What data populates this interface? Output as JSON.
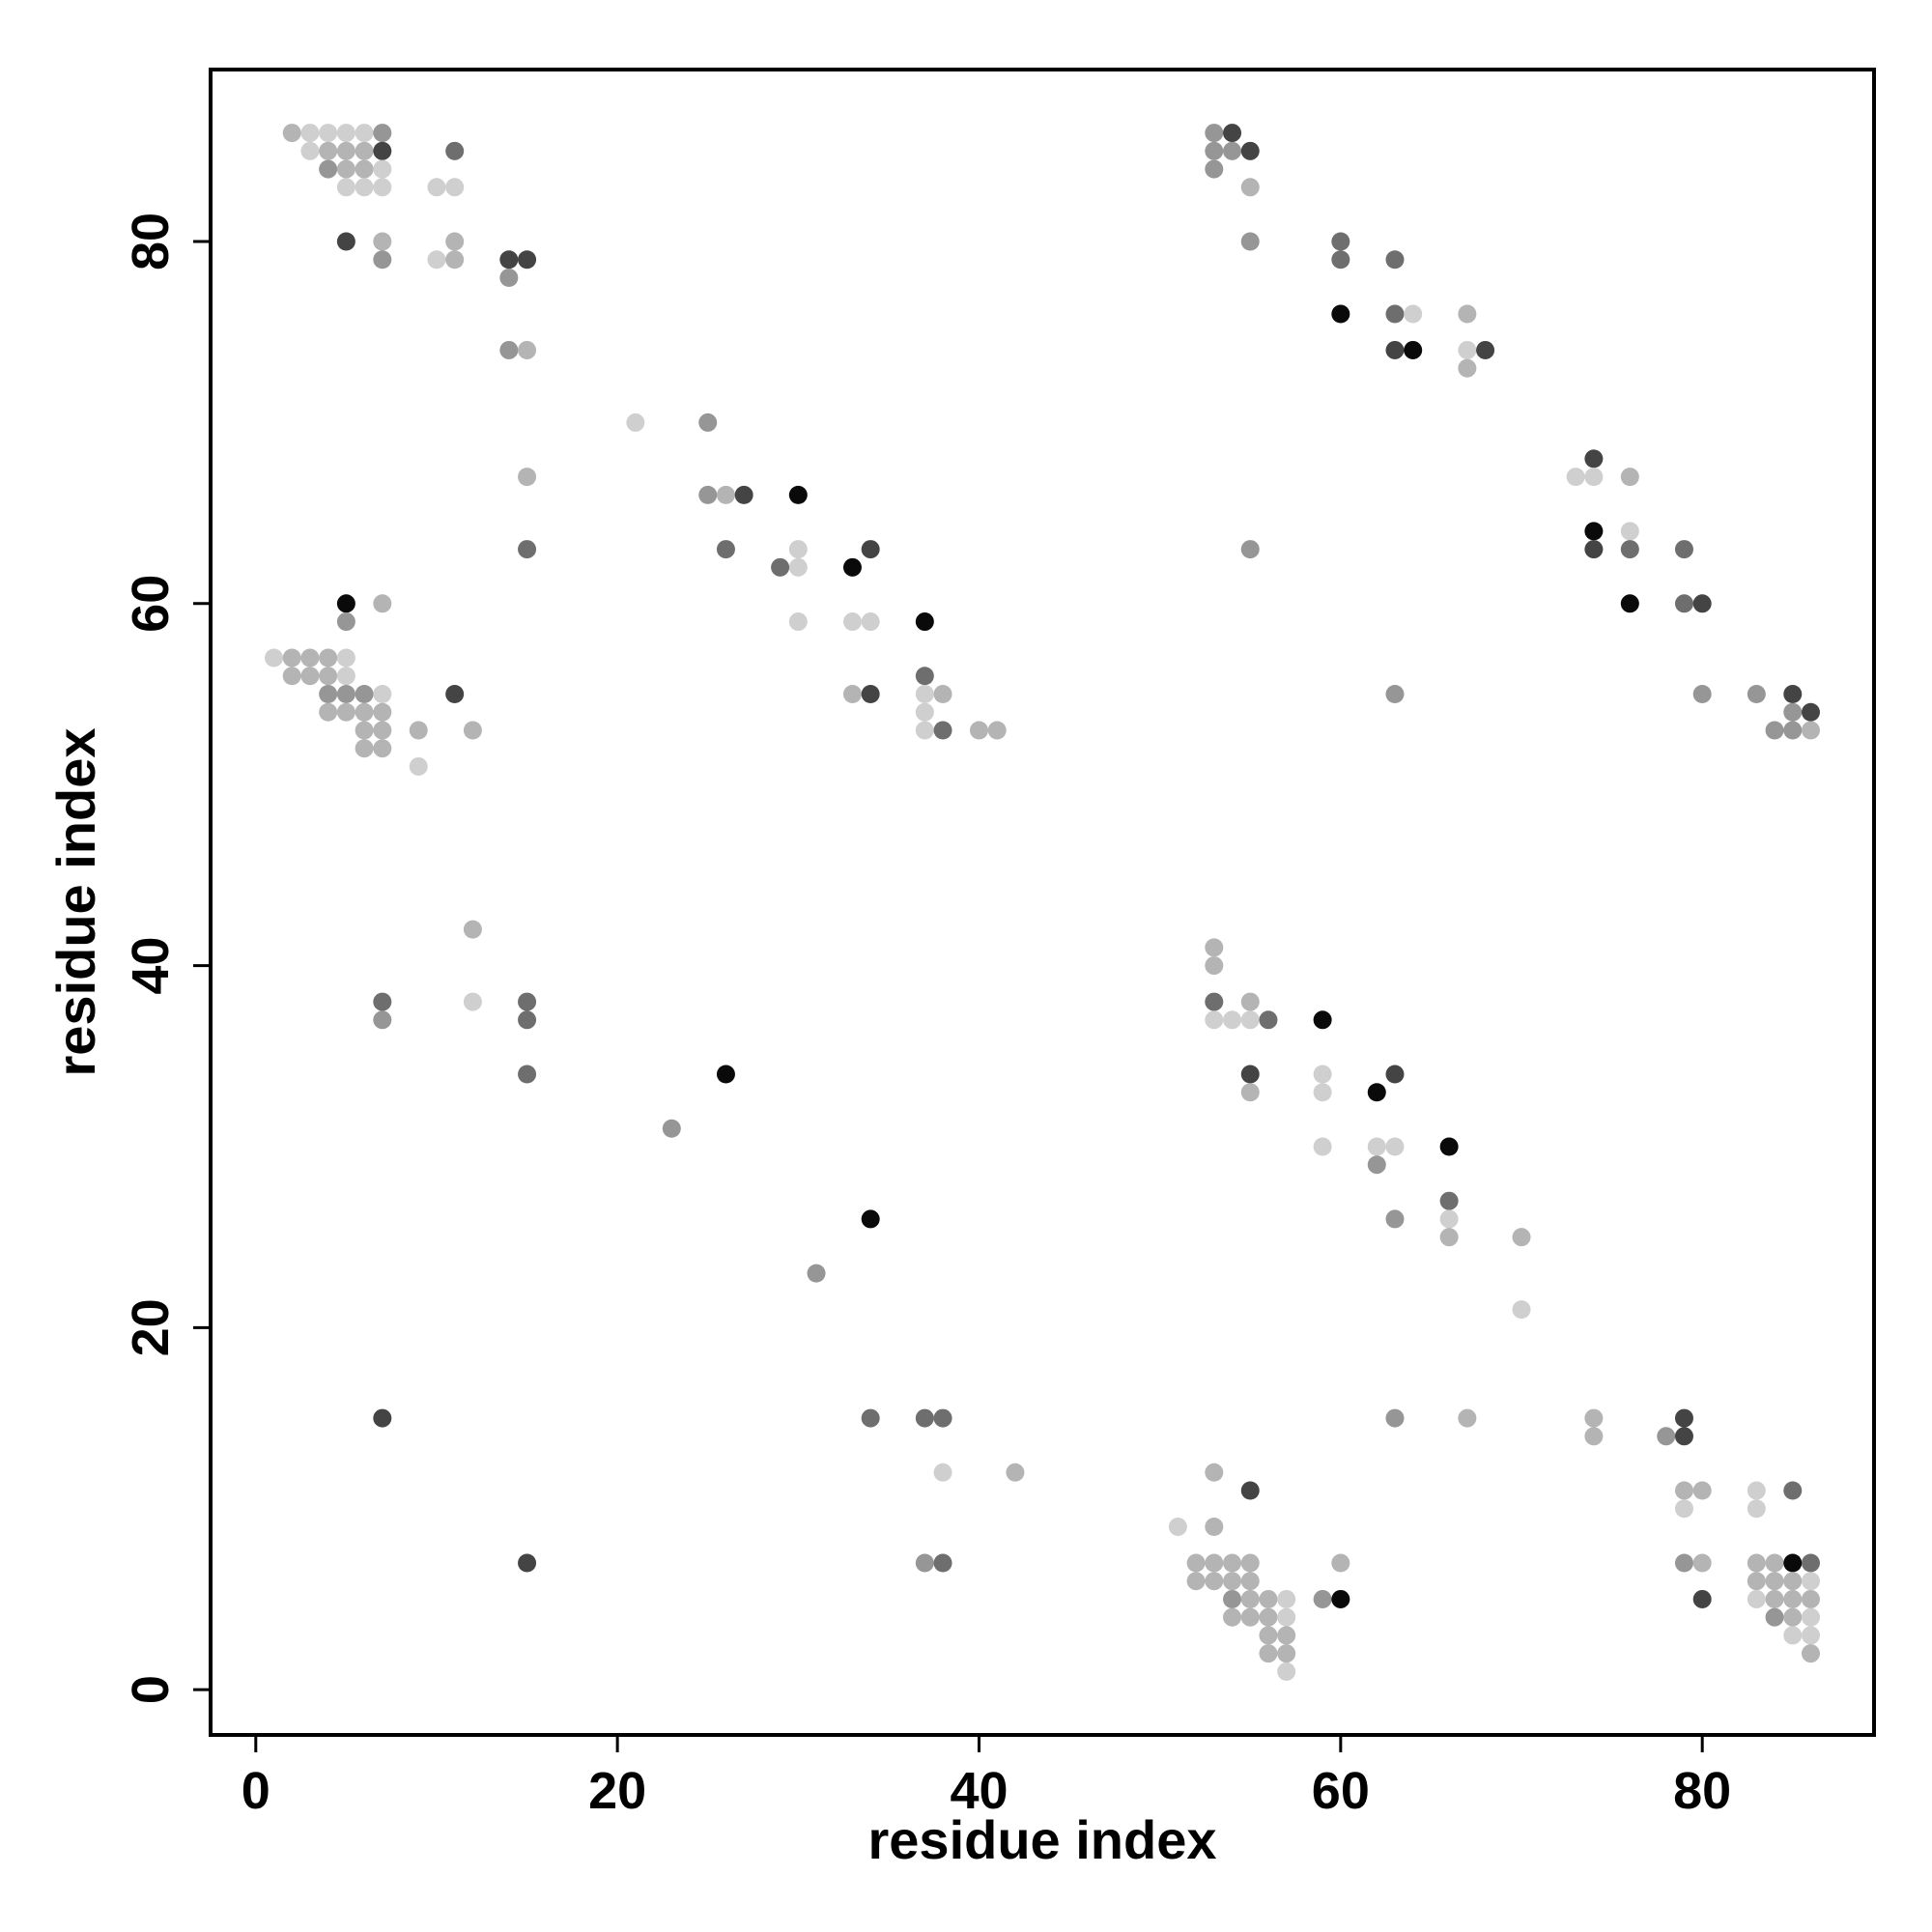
{
  "chart_data": {
    "type": "scatter",
    "title": "",
    "xlabel": "residue index",
    "ylabel": "residue index",
    "xlim": [
      -2.5,
      89.5
    ],
    "ylim": [
      -2.5,
      89.5
    ],
    "xticks": [
      0,
      20,
      40,
      60,
      80
    ],
    "yticks": [
      0,
      20,
      40,
      60,
      80
    ],
    "grid": false,
    "legend": "none",
    "point_shades": {
      "1": "#cfcfcf",
      "2": "#b4b4b4",
      "3": "#969696",
      "4": "#6e6e6e",
      "5": "#444444",
      "6": "#0a0a0a"
    },
    "points": [
      {
        "x": 2,
        "y": 86,
        "s": 2
      },
      {
        "x": 3,
        "y": 86,
        "s": 1
      },
      {
        "x": 4,
        "y": 86,
        "s": 1
      },
      {
        "x": 5,
        "y": 86,
        "s": 1
      },
      {
        "x": 6,
        "y": 86,
        "s": 1
      },
      {
        "x": 7,
        "y": 86,
        "s": 3
      },
      {
        "x": 3,
        "y": 85,
        "s": 1
      },
      {
        "x": 4,
        "y": 85,
        "s": 2
      },
      {
        "x": 5,
        "y": 85,
        "s": 2
      },
      {
        "x": 6,
        "y": 85,
        "s": 2
      },
      {
        "x": 7,
        "y": 85,
        "s": 5
      },
      {
        "x": 4,
        "y": 84,
        "s": 3
      },
      {
        "x": 5,
        "y": 84,
        "s": 2
      },
      {
        "x": 6,
        "y": 84,
        "s": 2
      },
      {
        "x": 7,
        "y": 84,
        "s": 1
      },
      {
        "x": 5,
        "y": 83,
        "s": 1
      },
      {
        "x": 6,
        "y": 83,
        "s": 1
      },
      {
        "x": 7,
        "y": 83,
        "s": 1
      },
      {
        "x": 10,
        "y": 83,
        "s": 1
      },
      {
        "x": 11,
        "y": 83,
        "s": 1
      },
      {
        "x": 11,
        "y": 85,
        "s": 4
      },
      {
        "x": 5,
        "y": 80,
        "s": 5
      },
      {
        "x": 7,
        "y": 80,
        "s": 2
      },
      {
        "x": 7,
        "y": 79,
        "s": 3
      },
      {
        "x": 10,
        "y": 79,
        "s": 1
      },
      {
        "x": 11,
        "y": 79,
        "s": 2
      },
      {
        "x": 11,
        "y": 80,
        "s": 2
      },
      {
        "x": 14,
        "y": 79,
        "s": 5
      },
      {
        "x": 15,
        "y": 79,
        "s": 5
      },
      {
        "x": 14,
        "y": 78,
        "s": 3
      },
      {
        "x": 14,
        "y": 74,
        "s": 3
      },
      {
        "x": 15,
        "y": 74,
        "s": 2
      },
      {
        "x": 15,
        "y": 67,
        "s": 2
      },
      {
        "x": 15,
        "y": 63,
        "s": 4
      },
      {
        "x": 21,
        "y": 70,
        "s": 1
      },
      {
        "x": 25,
        "y": 70,
        "s": 3
      },
      {
        "x": 25,
        "y": 66,
        "s": 3
      },
      {
        "x": 26,
        "y": 66,
        "s": 2
      },
      {
        "x": 27,
        "y": 66,
        "s": 5
      },
      {
        "x": 26,
        "y": 63,
        "s": 4
      },
      {
        "x": 30,
        "y": 66,
        "s": 6
      },
      {
        "x": 30,
        "y": 63,
        "s": 1
      },
      {
        "x": 30,
        "y": 62,
        "s": 1
      },
      {
        "x": 29,
        "y": 62,
        "s": 4
      },
      {
        "x": 30,
        "y": 59,
        "s": 1
      },
      {
        "x": 33,
        "y": 62,
        "s": 6
      },
      {
        "x": 34,
        "y": 63,
        "s": 5
      },
      {
        "x": 33,
        "y": 59,
        "s": 1
      },
      {
        "x": 34,
        "y": 59,
        "s": 1
      },
      {
        "x": 33,
        "y": 55,
        "s": 2
      },
      {
        "x": 34,
        "y": 55,
        "s": 5
      },
      {
        "x": 37,
        "y": 59,
        "s": 6
      },
      {
        "x": 37,
        "y": 56,
        "s": 4
      },
      {
        "x": 37,
        "y": 55,
        "s": 1
      },
      {
        "x": 38,
        "y": 55,
        "s": 2
      },
      {
        "x": 37,
        "y": 54,
        "s": 1
      },
      {
        "x": 37,
        "y": 53,
        "s": 1
      },
      {
        "x": 38,
        "y": 53,
        "s": 4
      },
      {
        "x": 40,
        "y": 53,
        "s": 2
      },
      {
        "x": 41,
        "y": 53,
        "s": 2
      },
      {
        "x": 5,
        "y": 60,
        "s": 6
      },
      {
        "x": 5,
        "y": 59,
        "s": 3
      },
      {
        "x": 7,
        "y": 60,
        "s": 2
      },
      {
        "x": 1,
        "y": 57,
        "s": 1
      },
      {
        "x": 2,
        "y": 57,
        "s": 2
      },
      {
        "x": 3,
        "y": 57,
        "s": 2
      },
      {
        "x": 4,
        "y": 57,
        "s": 2
      },
      {
        "x": 5,
        "y": 57,
        "s": 1
      },
      {
        "x": 2,
        "y": 56,
        "s": 2
      },
      {
        "x": 3,
        "y": 56,
        "s": 2
      },
      {
        "x": 4,
        "y": 56,
        "s": 2
      },
      {
        "x": 5,
        "y": 56,
        "s": 1
      },
      {
        "x": 4,
        "y": 55,
        "s": 3
      },
      {
        "x": 5,
        "y": 55,
        "s": 3
      },
      {
        "x": 6,
        "y": 55,
        "s": 3
      },
      {
        "x": 7,
        "y": 55,
        "s": 1
      },
      {
        "x": 4,
        "y": 54,
        "s": 2
      },
      {
        "x": 5,
        "y": 54,
        "s": 2
      },
      {
        "x": 6,
        "y": 54,
        "s": 2
      },
      {
        "x": 7,
        "y": 54,
        "s": 2
      },
      {
        "x": 6,
        "y": 53,
        "s": 2
      },
      {
        "x": 7,
        "y": 53,
        "s": 2
      },
      {
        "x": 6,
        "y": 52,
        "s": 2
      },
      {
        "x": 7,
        "y": 52,
        "s": 2
      },
      {
        "x": 9,
        "y": 53,
        "s": 2
      },
      {
        "x": 9,
        "y": 51,
        "s": 1
      },
      {
        "x": 11,
        "y": 55,
        "s": 5
      },
      {
        "x": 12,
        "y": 53,
        "s": 2
      },
      {
        "x": 12,
        "y": 42,
        "s": 2
      },
      {
        "x": 12,
        "y": 38,
        "s": 1
      },
      {
        "x": 7,
        "y": 38,
        "s": 4
      },
      {
        "x": 7,
        "y": 37,
        "s": 3
      },
      {
        "x": 15,
        "y": 38,
        "s": 4
      },
      {
        "x": 15,
        "y": 37,
        "s": 4
      },
      {
        "x": 15,
        "y": 34,
        "s": 4
      },
      {
        "x": 26,
        "y": 34,
        "s": 6
      },
      {
        "x": 23,
        "y": 31,
        "s": 3
      },
      {
        "x": 34,
        "y": 26,
        "s": 6
      },
      {
        "x": 31,
        "y": 23,
        "s": 3
      },
      {
        "x": 7,
        "y": 15,
        "s": 5
      },
      {
        "x": 15,
        "y": 7,
        "s": 5
      },
      {
        "x": 34,
        "y": 15,
        "s": 4
      },
      {
        "x": 37,
        "y": 15,
        "s": 4
      },
      {
        "x": 38,
        "y": 15,
        "s": 4
      },
      {
        "x": 38,
        "y": 12,
        "s": 1
      },
      {
        "x": 42,
        "y": 12,
        "s": 2
      },
      {
        "x": 37,
        "y": 7,
        "s": 3
      },
      {
        "x": 38,
        "y": 7,
        "s": 4
      },
      {
        "x": 53,
        "y": 86,
        "s": 3
      },
      {
        "x": 54,
        "y": 86,
        "s": 5
      },
      {
        "x": 53,
        "y": 85,
        "s": 3
      },
      {
        "x": 54,
        "y": 85,
        "s": 3
      },
      {
        "x": 55,
        "y": 85,
        "s": 5
      },
      {
        "x": 53,
        "y": 84,
        "s": 3
      },
      {
        "x": 55,
        "y": 83,
        "s": 2
      },
      {
        "x": 55,
        "y": 80,
        "s": 3
      },
      {
        "x": 60,
        "y": 80,
        "s": 4
      },
      {
        "x": 60,
        "y": 79,
        "s": 4
      },
      {
        "x": 63,
        "y": 79,
        "s": 4
      },
      {
        "x": 60,
        "y": 76,
        "s": 6
      },
      {
        "x": 63,
        "y": 76,
        "s": 4
      },
      {
        "x": 64,
        "y": 76,
        "s": 1
      },
      {
        "x": 67,
        "y": 76,
        "s": 2
      },
      {
        "x": 63,
        "y": 74,
        "s": 5
      },
      {
        "x": 64,
        "y": 74,
        "s": 6
      },
      {
        "x": 67,
        "y": 74,
        "s": 1
      },
      {
        "x": 68,
        "y": 74,
        "s": 5
      },
      {
        "x": 67,
        "y": 73,
        "s": 2
      },
      {
        "x": 55,
        "y": 63,
        "s": 3
      },
      {
        "x": 74,
        "y": 68,
        "s": 5
      },
      {
        "x": 73,
        "y": 67,
        "s": 1
      },
      {
        "x": 74,
        "y": 67,
        "s": 1
      },
      {
        "x": 76,
        "y": 67,
        "s": 2
      },
      {
        "x": 74,
        "y": 64,
        "s": 6
      },
      {
        "x": 76,
        "y": 64,
        "s": 1
      },
      {
        "x": 74,
        "y": 63,
        "s": 5
      },
      {
        "x": 76,
        "y": 63,
        "s": 4
      },
      {
        "x": 79,
        "y": 63,
        "s": 4
      },
      {
        "x": 76,
        "y": 60,
        "s": 6
      },
      {
        "x": 79,
        "y": 60,
        "s": 4
      },
      {
        "x": 80,
        "y": 60,
        "s": 5
      },
      {
        "x": 63,
        "y": 55,
        "s": 3
      },
      {
        "x": 80,
        "y": 55,
        "s": 3
      },
      {
        "x": 83,
        "y": 55,
        "s": 3
      },
      {
        "x": 85,
        "y": 55,
        "s": 5
      },
      {
        "x": 85,
        "y": 54,
        "s": 3
      },
      {
        "x": 86,
        "y": 54,
        "s": 5
      },
      {
        "x": 84,
        "y": 53,
        "s": 3
      },
      {
        "x": 85,
        "y": 53,
        "s": 3
      },
      {
        "x": 86,
        "y": 53,
        "s": 2
      },
      {
        "x": 53,
        "y": 41,
        "s": 2
      },
      {
        "x": 53,
        "y": 40,
        "s": 2
      },
      {
        "x": 53,
        "y": 38,
        "s": 4
      },
      {
        "x": 55,
        "y": 38,
        "s": 2
      },
      {
        "x": 53,
        "y": 37,
        "s": 1
      },
      {
        "x": 54,
        "y": 37,
        "s": 1
      },
      {
        "x": 55,
        "y": 37,
        "s": 1
      },
      {
        "x": 56,
        "y": 37,
        "s": 4
      },
      {
        "x": 59,
        "y": 37,
        "s": 6
      },
      {
        "x": 55,
        "y": 34,
        "s": 5
      },
      {
        "x": 55,
        "y": 33,
        "s": 2
      },
      {
        "x": 59,
        "y": 34,
        "s": 1
      },
      {
        "x": 59,
        "y": 33,
        "s": 1
      },
      {
        "x": 62,
        "y": 33,
        "s": 6
      },
      {
        "x": 63,
        "y": 34,
        "s": 5
      },
      {
        "x": 59,
        "y": 30,
        "s": 1
      },
      {
        "x": 62,
        "y": 30,
        "s": 1
      },
      {
        "x": 63,
        "y": 30,
        "s": 1
      },
      {
        "x": 62,
        "y": 29,
        "s": 3
      },
      {
        "x": 66,
        "y": 30,
        "s": 6
      },
      {
        "x": 66,
        "y": 27,
        "s": 4
      },
      {
        "x": 63,
        "y": 26,
        "s": 3
      },
      {
        "x": 66,
        "y": 26,
        "s": 1
      },
      {
        "x": 66,
        "y": 25,
        "s": 2
      },
      {
        "x": 70,
        "y": 25,
        "s": 2
      },
      {
        "x": 70,
        "y": 21,
        "s": 1
      },
      {
        "x": 63,
        "y": 15,
        "s": 3
      },
      {
        "x": 67,
        "y": 15,
        "s": 2
      },
      {
        "x": 74,
        "y": 15,
        "s": 2
      },
      {
        "x": 74,
        "y": 14,
        "s": 2
      },
      {
        "x": 78,
        "y": 14,
        "s": 3
      },
      {
        "x": 79,
        "y": 15,
        "s": 5
      },
      {
        "x": 79,
        "y": 14,
        "s": 5
      },
      {
        "x": 53,
        "y": 12,
        "s": 2
      },
      {
        "x": 55,
        "y": 11,
        "s": 5
      },
      {
        "x": 79,
        "y": 11,
        "s": 2
      },
      {
        "x": 80,
        "y": 11,
        "s": 2
      },
      {
        "x": 79,
        "y": 10,
        "s": 1
      },
      {
        "x": 83,
        "y": 11,
        "s": 1
      },
      {
        "x": 83,
        "y": 10,
        "s": 1
      },
      {
        "x": 85,
        "y": 11,
        "s": 4
      },
      {
        "x": 51,
        "y": 9,
        "s": 1
      },
      {
        "x": 53,
        "y": 9,
        "s": 2
      },
      {
        "x": 52,
        "y": 7,
        "s": 2
      },
      {
        "x": 53,
        "y": 7,
        "s": 2
      },
      {
        "x": 54,
        "y": 7,
        "s": 2
      },
      {
        "x": 55,
        "y": 7,
        "s": 2
      },
      {
        "x": 52,
        "y": 6,
        "s": 2
      },
      {
        "x": 53,
        "y": 6,
        "s": 2
      },
      {
        "x": 54,
        "y": 6,
        "s": 2
      },
      {
        "x": 55,
        "y": 6,
        "s": 2
      },
      {
        "x": 54,
        "y": 5,
        "s": 3
      },
      {
        "x": 55,
        "y": 5,
        "s": 2
      },
      {
        "x": 56,
        "y": 5,
        "s": 2
      },
      {
        "x": 57,
        "y": 5,
        "s": 1
      },
      {
        "x": 54,
        "y": 4,
        "s": 2
      },
      {
        "x": 55,
        "y": 4,
        "s": 2
      },
      {
        "x": 56,
        "y": 4,
        "s": 2
      },
      {
        "x": 57,
        "y": 4,
        "s": 1
      },
      {
        "x": 56,
        "y": 3,
        "s": 2
      },
      {
        "x": 57,
        "y": 3,
        "s": 2
      },
      {
        "x": 56,
        "y": 2,
        "s": 2
      },
      {
        "x": 57,
        "y": 2,
        "s": 2
      },
      {
        "x": 57,
        "y": 1,
        "s": 1
      },
      {
        "x": 59,
        "y": 5,
        "s": 3
      },
      {
        "x": 60,
        "y": 5,
        "s": 6
      },
      {
        "x": 60,
        "y": 7,
        "s": 2
      },
      {
        "x": 79,
        "y": 7,
        "s": 3
      },
      {
        "x": 80,
        "y": 7,
        "s": 2
      },
      {
        "x": 80,
        "y": 5,
        "s": 5
      },
      {
        "x": 83,
        "y": 7,
        "s": 2
      },
      {
        "x": 84,
        "y": 7,
        "s": 2
      },
      {
        "x": 85,
        "y": 7,
        "s": 6
      },
      {
        "x": 86,
        "y": 7,
        "s": 4
      },
      {
        "x": 83,
        "y": 6,
        "s": 2
      },
      {
        "x": 84,
        "y": 6,
        "s": 2
      },
      {
        "x": 85,
        "y": 6,
        "s": 2
      },
      {
        "x": 86,
        "y": 6,
        "s": 1
      },
      {
        "x": 83,
        "y": 5,
        "s": 1
      },
      {
        "x": 84,
        "y": 5,
        "s": 2
      },
      {
        "x": 85,
        "y": 5,
        "s": 2
      },
      {
        "x": 86,
        "y": 5,
        "s": 2
      },
      {
        "x": 84,
        "y": 4,
        "s": 3
      },
      {
        "x": 85,
        "y": 4,
        "s": 2
      },
      {
        "x": 86,
        "y": 4,
        "s": 1
      },
      {
        "x": 85,
        "y": 3,
        "s": 1
      },
      {
        "x": 86,
        "y": 3,
        "s": 1
      },
      {
        "x": 86,
        "y": 2,
        "s": 2
      }
    ]
  }
}
